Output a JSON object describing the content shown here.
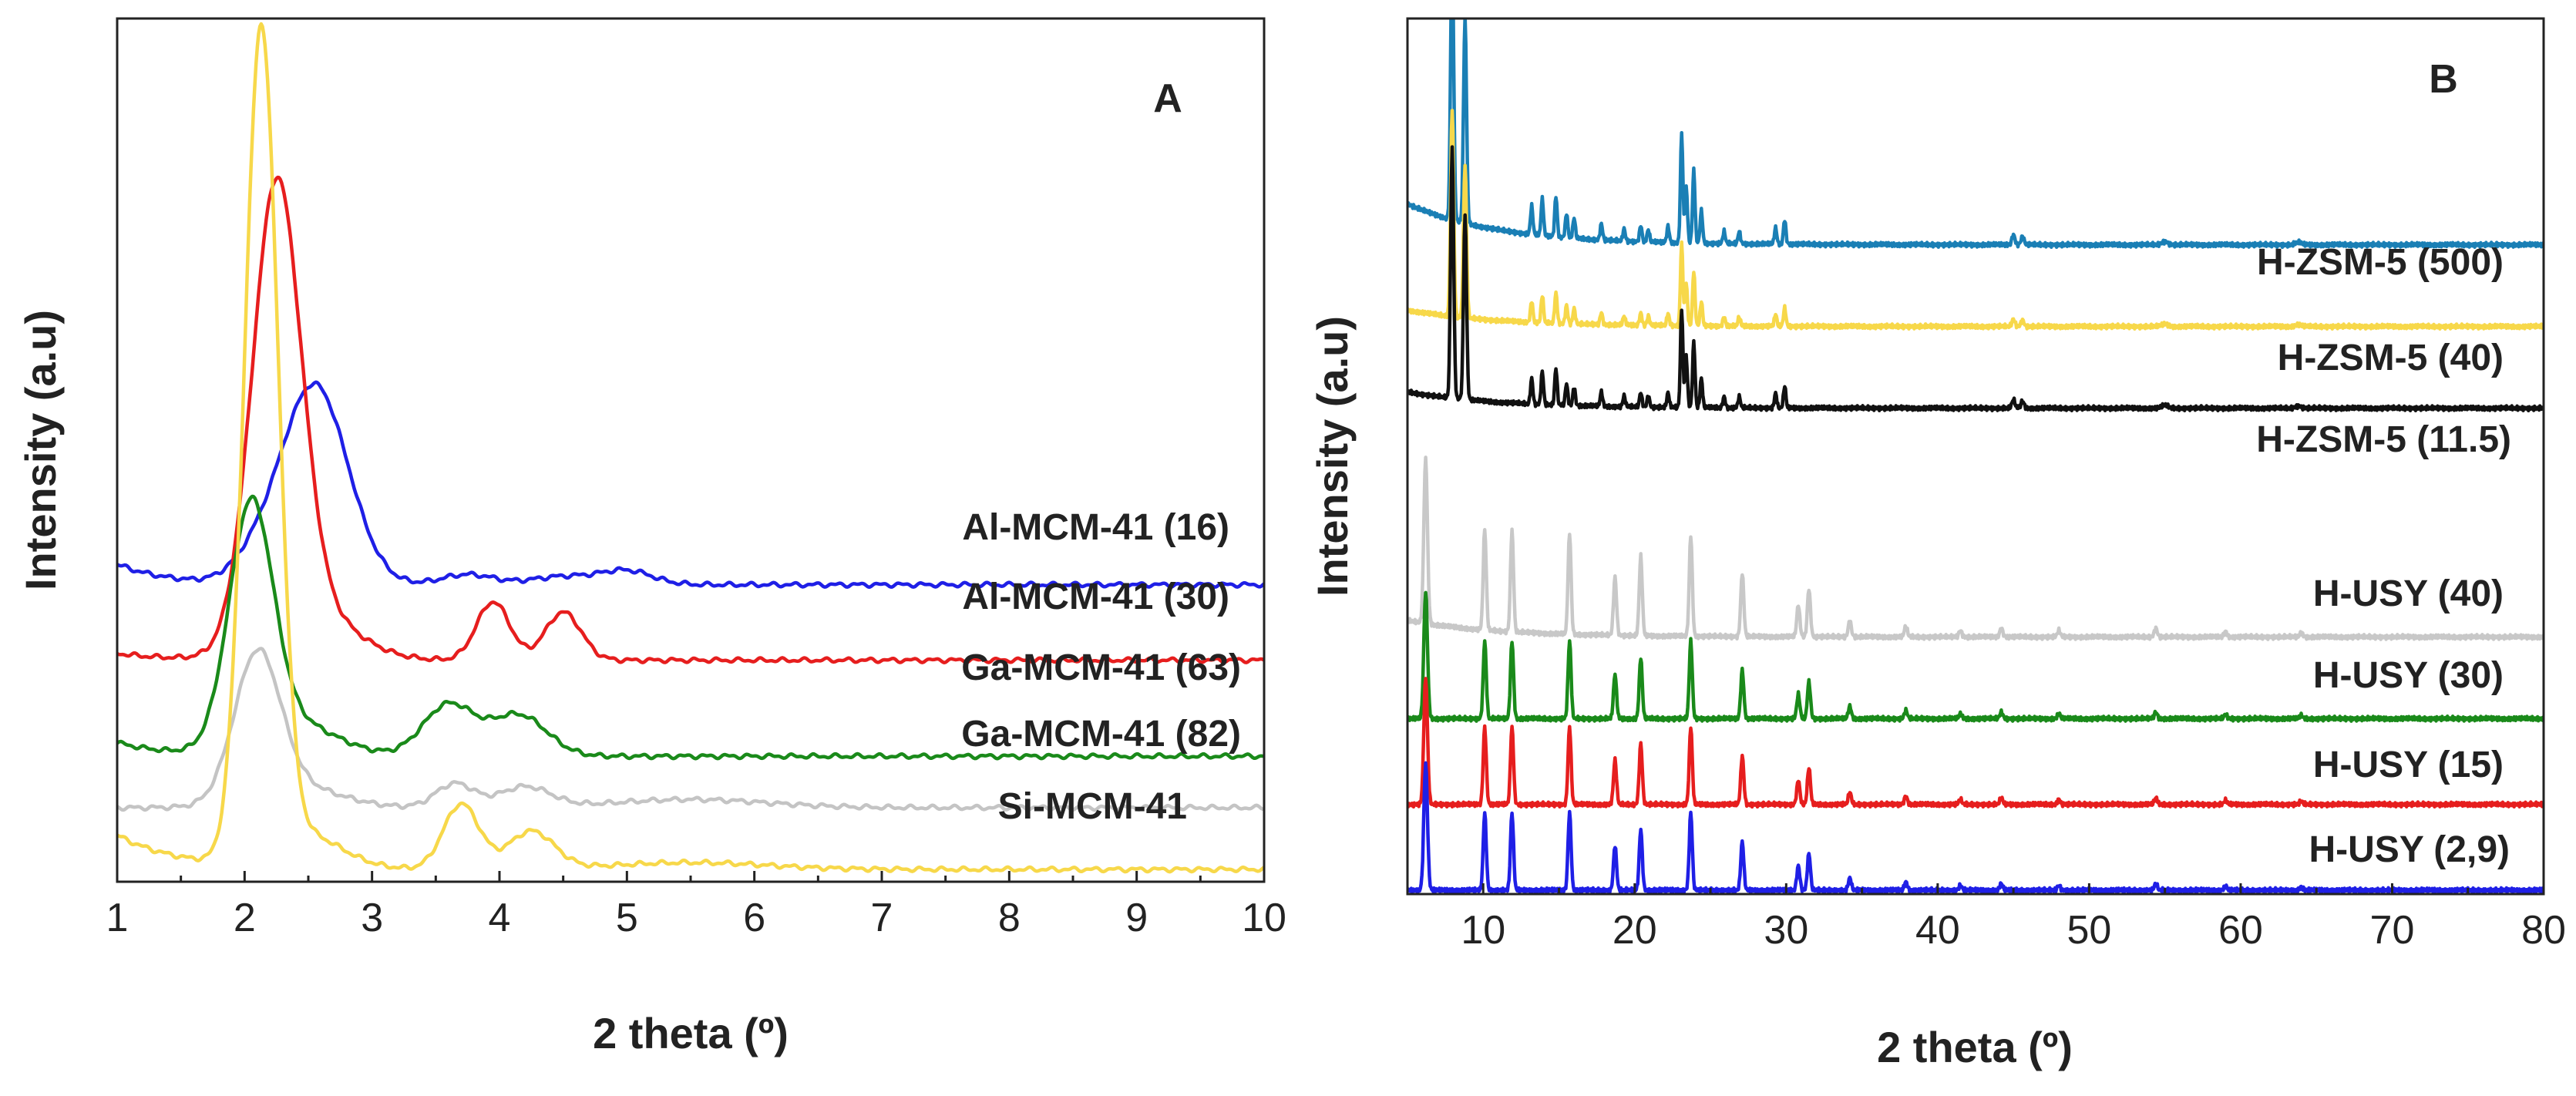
{
  "chart_data": [
    {
      "type": "line",
      "panel": "A",
      "xlabel": "2 theta (º)",
      "ylabel": "Intensity (a.u)",
      "xlim": [
        1,
        10
      ],
      "xticks": [
        1,
        2,
        3,
        4,
        5,
        6,
        7,
        8,
        9,
        10
      ],
      "yticks": [],
      "grid": false,
      "series": [
        {
          "name": "Al-MCM-41 (16)",
          "color": "#1f1fe6",
          "offset": 4.0,
          "baseline": 0.15,
          "tail": 0.3,
          "tail_width": 0.4,
          "peaks": [
            [
              2.55,
              2.9,
              0.26
            ],
            [
              2.1,
              0.3,
              0.2
            ],
            [
              3.75,
              0.15,
              0.2
            ],
            [
              4.5,
              0.12,
              0.25
            ],
            [
              5.0,
              0.2,
              0.2
            ]
          ]
        },
        {
          "name": "Al-MCM-41 (30)",
          "color": "#e61e1e",
          "offset": 3.0,
          "baseline": 0.05,
          "tail": 0.1,
          "tail_width": 0.4,
          "peaks": [
            [
              2.25,
              6.5,
              0.19
            ],
            [
              2.5,
              0.7,
              0.35
            ],
            [
              3.95,
              0.85,
              0.13
            ],
            [
              4.5,
              0.7,
              0.14
            ]
          ]
        },
        {
          "name": "Ga-MCM-41 (63)",
          "color": "#1a8a1a",
          "offset": 1.6,
          "baseline": 0.05,
          "tail": 0.2,
          "tail_width": 0.4,
          "peaks": [
            [
              2.05,
              3.4,
              0.17
            ],
            [
              2.35,
              0.5,
              0.35
            ],
            [
              3.6,
              0.75,
              0.2
            ],
            [
              4.15,
              0.6,
              0.22
            ]
          ]
        },
        {
          "name": "Ga-MCM-41 (82)",
          "color": "#c4c4c4",
          "offset": 0.9,
          "baseline": 0.0,
          "tail": 0.0,
          "tail_width": 0.4,
          "peaks": [
            [
              2.1,
              2.1,
              0.18
            ],
            [
              2.4,
              0.3,
              0.35
            ],
            [
              3.65,
              0.35,
              0.15
            ],
            [
              4.2,
              0.3,
              0.2
            ],
            [
              5.5,
              0.12,
              0.6
            ]
          ]
        },
        {
          "name": "Si-MCM-41",
          "color": "#f7d84a",
          "offset": 0.0,
          "baseline": 0.0,
          "tail": 0.5,
          "tail_width": 0.5,
          "peaks": [
            [
              2.13,
              12.0,
              0.13
            ],
            [
              2.45,
              0.5,
              0.3
            ],
            [
              3.7,
              0.95,
              0.14
            ],
            [
              4.25,
              0.55,
              0.18
            ],
            [
              5.5,
              0.1,
              0.6
            ]
          ]
        }
      ]
    },
    {
      "type": "line",
      "panel": "B",
      "xlabel": "2 theta (º)",
      "ylabel": "Intensity (a.u)",
      "xlim": [
        5,
        80
      ],
      "xticks": [
        10,
        20,
        30,
        40,
        50,
        60,
        70,
        80
      ],
      "yticks": [],
      "grid": false,
      "series": [
        {
          "name": "H-ZSM-5 (500)",
          "color": "#1a7fb5",
          "offset": 7.9,
          "baseline": 0.0,
          "family": "zsm",
          "scale": 1.0,
          "bump": 0.5
        },
        {
          "name": "H-ZSM-5 (40)",
          "color": "#f7d84a",
          "offset": 6.9,
          "baseline": 0.0,
          "family": "zsm",
          "scale": 0.75,
          "bump": 0.2
        },
        {
          "name": "H-ZSM-5 (11.5)",
          "color": "#111111",
          "offset": 5.9,
          "baseline": 0.0,
          "family": "zsm",
          "scale": 0.9,
          "bump": 0.2
        },
        {
          "name": "H-USY (40)",
          "color": "#c8c8c8",
          "offset": 3.1,
          "baseline": 0.0,
          "family": "usy",
          "scale": 1.3,
          "bump": 0.2
        },
        {
          "name": "H-USY (30)",
          "color": "#1a8a1a",
          "offset": 2.1,
          "baseline": 0.0,
          "family": "usy",
          "scale": 1.0,
          "bump": 0.0
        },
        {
          "name": "H-USY (15)",
          "color": "#e61e1e",
          "offset": 1.05,
          "baseline": 0.0,
          "family": "usy",
          "scale": 1.0,
          "bump": 0.0
        },
        {
          "name": "H-USY (2,9)",
          "color": "#1f1fe6",
          "offset": 0.0,
          "baseline": 0.0,
          "family": "usy",
          "scale": 1.0,
          "bump": 0.0
        }
      ]
    }
  ]
}
